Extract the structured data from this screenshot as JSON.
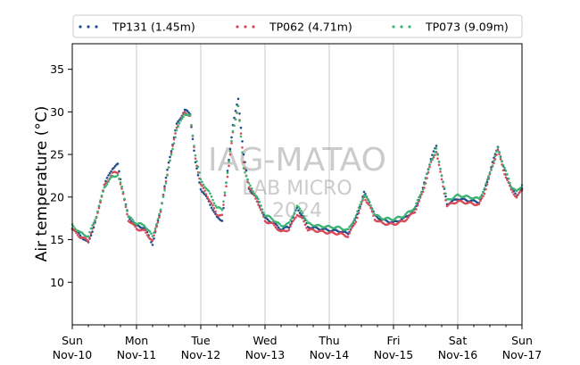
{
  "chart_data": {
    "type": "scatter",
    "title": "",
    "xlabel": "",
    "ylabel": "Air temperature (°C)",
    "ylim": [
      5,
      38
    ],
    "xlim": [
      "2024-11-10",
      "2024-11-17"
    ],
    "y_ticks": [
      10,
      15,
      20,
      25,
      30,
      35
    ],
    "x_ticks": [
      {
        "day": "Sun",
        "date": "Nov-10"
      },
      {
        "day": "Mon",
        "date": "Nov-11"
      },
      {
        "day": "Tue",
        "date": "Nov-12"
      },
      {
        "day": "Wed",
        "date": "Nov-13"
      },
      {
        "day": "Thu",
        "date": "Nov-14"
      },
      {
        "day": "Fri",
        "date": "Nov-15"
      },
      {
        "day": "Sat",
        "date": "Nov-16"
      },
      {
        "day": "Sun",
        "date": "Nov-17"
      }
    ],
    "grid": "vertical at each day",
    "legend_position": "top, above plot, 3 columns",
    "series": [
      {
        "name": "TP131 (1.45m)",
        "color": "#1f4e8c",
        "points": [
          [
            "2024-11-10 00:00",
            16.4
          ],
          [
            "2024-11-10 03:00",
            15.5
          ],
          [
            "2024-11-10 06:00",
            14.6
          ],
          [
            "2024-11-10 09:00",
            17.5
          ],
          [
            "2024-11-10 12:00",
            21.5
          ],
          [
            "2024-11-10 15:00",
            23.4
          ],
          [
            "2024-11-10 17:00",
            23.8
          ],
          [
            "2024-11-10 19:00",
            20.5
          ],
          [
            "2024-11-10 21:00",
            17.6
          ],
          [
            "2024-11-11 00:00",
            16.6
          ],
          [
            "2024-11-11 03:00",
            16.4
          ],
          [
            "2024-11-11 06:00",
            14.5
          ],
          [
            "2024-11-11 09:00",
            18.5
          ],
          [
            "2024-11-11 12:00",
            24.0
          ],
          [
            "2024-11-11 15:00",
            28.5
          ],
          [
            "2024-11-11 18:00",
            30.2
          ],
          [
            "2024-11-11 20:00",
            29.8
          ],
          [
            "2024-11-11 22:00",
            24.0
          ],
          [
            "2024-11-12 00:00",
            21.0
          ],
          [
            "2024-11-12 03:00",
            19.5
          ],
          [
            "2024-11-12 06:00",
            17.6
          ],
          [
            "2024-11-12 08:00",
            17.3
          ],
          [
            "2024-11-12 10:00",
            23.0
          ],
          [
            "2024-11-12 12:00",
            28.5
          ],
          [
            "2024-11-12 14:00",
            31.5
          ],
          [
            "2024-11-12 16:00",
            25.0
          ],
          [
            "2024-11-12 18:00",
            21.0
          ],
          [
            "2024-11-12 21:00",
            19.8
          ],
          [
            "2024-11-13 00:00",
            17.5
          ],
          [
            "2024-11-13 03:00",
            17.0
          ],
          [
            "2024-11-13 06:00",
            16.2
          ],
          [
            "2024-11-13 09:00",
            16.5
          ],
          [
            "2024-11-13 12:00",
            18.7
          ],
          [
            "2024-11-13 14:00",
            17.8
          ],
          [
            "2024-11-13 16:00",
            16.5
          ],
          [
            "2024-11-13 20:00",
            16.3
          ],
          [
            "2024-11-14 00:00",
            16.1
          ],
          [
            "2024-11-14 04:00",
            16.0
          ],
          [
            "2024-11-14 07:00",
            15.7
          ],
          [
            "2024-11-14 10:00",
            17.5
          ],
          [
            "2024-11-14 13:00",
            20.5
          ],
          [
            "2024-11-14 15:00",
            19.5
          ],
          [
            "2024-11-14 17:00",
            17.8
          ],
          [
            "2024-11-14 20:00",
            17.3
          ],
          [
            "2024-11-15 00:00",
            17.0
          ],
          [
            "2024-11-15 04:00",
            17.5
          ],
          [
            "2024-11-15 08:00",
            18.5
          ],
          [
            "2024-11-15 11:00",
            21.0
          ],
          [
            "2024-11-15 14:00",
            24.5
          ],
          [
            "2024-11-15 16:00",
            26.0
          ],
          [
            "2024-11-15 18:00",
            22.5
          ],
          [
            "2024-11-15 20:00",
            19.2
          ],
          [
            "2024-11-16 00:00",
            19.8
          ],
          [
            "2024-11-16 04:00",
            19.6
          ],
          [
            "2024-11-16 08:00",
            19.4
          ],
          [
            "2024-11-16 10:00",
            20.8
          ],
          [
            "2024-11-16 13:00",
            24.0
          ],
          [
            "2024-11-16 15:00",
            26.0
          ],
          [
            "2024-11-16 17:00",
            23.5
          ],
          [
            "2024-11-16 20:00",
            21.0
          ],
          [
            "2024-11-16 22:00",
            20.2
          ],
          [
            "2024-11-17 00:00",
            21.0
          ]
        ]
      },
      {
        "name": "TP062 (4.71m)",
        "color": "#d94a58",
        "points": [
          [
            "2024-11-10 00:00",
            16.2
          ],
          [
            "2024-11-10 03:00",
            15.3
          ],
          [
            "2024-11-10 06:00",
            14.9
          ],
          [
            "2024-11-10 09:00",
            17.6
          ],
          [
            "2024-11-10 12:00",
            21.3
          ],
          [
            "2024-11-10 15:00",
            22.8
          ],
          [
            "2024-11-10 17:00",
            22.9
          ],
          [
            "2024-11-10 19:00",
            20.3
          ],
          [
            "2024-11-10 21:00",
            17.3
          ],
          [
            "2024-11-11 00:00",
            16.3
          ],
          [
            "2024-11-11 03:00",
            16.0
          ],
          [
            "2024-11-11 06:00",
            14.8
          ],
          [
            "2024-11-11 09:00",
            18.3
          ],
          [
            "2024-11-11 12:00",
            23.6
          ],
          [
            "2024-11-11 15:00",
            28.2
          ],
          [
            "2024-11-11 18:00",
            29.9
          ],
          [
            "2024-11-11 20:00",
            29.6
          ],
          [
            "2024-11-11 22:00",
            24.5
          ],
          [
            "2024-11-12 00:00",
            21.5
          ],
          [
            "2024-11-12 03:00",
            19.8
          ],
          [
            "2024-11-12 06:00",
            18.0
          ],
          [
            "2024-11-12 08:00",
            17.8
          ],
          [
            "2024-11-12 10:00",
            22.5
          ],
          [
            "2024-11-12 12:00",
            27.5
          ],
          [
            "2024-11-12 14:00",
            30.8
          ],
          [
            "2024-11-12 16:00",
            24.0
          ],
          [
            "2024-11-12 18:00",
            21.2
          ],
          [
            "2024-11-12 21:00",
            19.6
          ],
          [
            "2024-11-13 00:00",
            17.2
          ],
          [
            "2024-11-13 03:00",
            16.8
          ],
          [
            "2024-11-13 06:00",
            15.9
          ],
          [
            "2024-11-13 09:00",
            16.2
          ],
          [
            "2024-11-13 12:00",
            18.0
          ],
          [
            "2024-11-13 14:00",
            17.4
          ],
          [
            "2024-11-13 16:00",
            16.2
          ],
          [
            "2024-11-13 20:00",
            16.0
          ],
          [
            "2024-11-14 00:00",
            15.8
          ],
          [
            "2024-11-14 04:00",
            15.7
          ],
          [
            "2024-11-14 07:00",
            15.4
          ],
          [
            "2024-11-14 10:00",
            17.2
          ],
          [
            "2024-11-14 13:00",
            20.0
          ],
          [
            "2024-11-14 15:00",
            19.0
          ],
          [
            "2024-11-14 17:00",
            17.4
          ],
          [
            "2024-11-14 20:00",
            16.9
          ],
          [
            "2024-11-15 00:00",
            16.8
          ],
          [
            "2024-11-15 04:00",
            17.2
          ],
          [
            "2024-11-15 08:00",
            18.3
          ],
          [
            "2024-11-15 11:00",
            20.6
          ],
          [
            "2024-11-15 14:00",
            24.0
          ],
          [
            "2024-11-15 16:00",
            25.4
          ],
          [
            "2024-11-15 18:00",
            22.0
          ],
          [
            "2024-11-15 20:00",
            19.0
          ],
          [
            "2024-11-16 00:00",
            19.5
          ],
          [
            "2024-11-16 04:00",
            19.3
          ],
          [
            "2024-11-16 08:00",
            19.1
          ],
          [
            "2024-11-16 10:00",
            20.5
          ],
          [
            "2024-11-16 13:00",
            23.6
          ],
          [
            "2024-11-16 15:00",
            25.5
          ],
          [
            "2024-11-16 17:00",
            23.2
          ],
          [
            "2024-11-16 20:00",
            20.8
          ],
          [
            "2024-11-16 22:00",
            20.0
          ],
          [
            "2024-11-17 00:00",
            20.8
          ]
        ]
      },
      {
        "name": "TP073 (9.09m)",
        "color": "#3cb371",
        "points": [
          [
            "2024-11-10 00:00",
            16.7
          ],
          [
            "2024-11-10 03:00",
            15.8
          ],
          [
            "2024-11-10 06:00",
            15.4
          ],
          [
            "2024-11-10 09:00",
            17.8
          ],
          [
            "2024-11-10 12:00",
            21.2
          ],
          [
            "2024-11-10 15:00",
            22.4
          ],
          [
            "2024-11-10 17:00",
            22.6
          ],
          [
            "2024-11-10 19:00",
            20.6
          ],
          [
            "2024-11-10 21:00",
            17.7
          ],
          [
            "2024-11-11 00:00",
            16.9
          ],
          [
            "2024-11-11 03:00",
            16.7
          ],
          [
            "2024-11-11 06:00",
            15.4
          ],
          [
            "2024-11-11 09:00",
            18.4
          ],
          [
            "2024-11-11 12:00",
            23.4
          ],
          [
            "2024-11-11 15:00",
            27.9
          ],
          [
            "2024-11-11 18:00",
            29.8
          ],
          [
            "2024-11-11 20:00",
            29.5
          ],
          [
            "2024-11-11 22:00",
            25.0
          ],
          [
            "2024-11-12 00:00",
            22.0
          ],
          [
            "2024-11-12 03:00",
            20.6
          ],
          [
            "2024-11-12 06:00",
            18.8
          ],
          [
            "2024-11-12 08:00",
            18.5
          ],
          [
            "2024-11-12 10:00",
            22.8
          ],
          [
            "2024-11-12 12:00",
            27.8
          ],
          [
            "2024-11-12 14:00",
            30.6
          ],
          [
            "2024-11-12 16:00",
            23.5
          ],
          [
            "2024-11-12 18:00",
            21.5
          ],
          [
            "2024-11-12 21:00",
            20.0
          ],
          [
            "2024-11-13 00:00",
            17.9
          ],
          [
            "2024-11-13 03:00",
            17.4
          ],
          [
            "2024-11-13 06:00",
            16.6
          ],
          [
            "2024-11-13 09:00",
            16.9
          ],
          [
            "2024-11-13 12:00",
            18.9
          ],
          [
            "2024-11-13 14:00",
            18.2
          ],
          [
            "2024-11-13 16:00",
            16.9
          ],
          [
            "2024-11-13 20:00",
            16.6
          ],
          [
            "2024-11-14 00:00",
            16.5
          ],
          [
            "2024-11-14 04:00",
            16.4
          ],
          [
            "2024-11-14 07:00",
            16.1
          ],
          [
            "2024-11-14 10:00",
            17.8
          ],
          [
            "2024-11-14 13:00",
            20.3
          ],
          [
            "2024-11-14 15:00",
            19.4
          ],
          [
            "2024-11-14 17:00",
            17.9
          ],
          [
            "2024-11-14 20:00",
            17.5
          ],
          [
            "2024-11-15 00:00",
            17.4
          ],
          [
            "2024-11-15 04:00",
            17.8
          ],
          [
            "2024-11-15 08:00",
            18.8
          ],
          [
            "2024-11-15 11:00",
            21.0
          ],
          [
            "2024-11-15 14:00",
            24.3
          ],
          [
            "2024-11-15 16:00",
            25.6
          ],
          [
            "2024-11-15 18:00",
            22.6
          ],
          [
            "2024-11-15 20:00",
            19.6
          ],
          [
            "2024-11-16 00:00",
            20.2
          ],
          [
            "2024-11-16 04:00",
            20.0
          ],
          [
            "2024-11-16 08:00",
            19.8
          ],
          [
            "2024-11-16 10:00",
            21.0
          ],
          [
            "2024-11-16 13:00",
            23.8
          ],
          [
            "2024-11-16 15:00",
            25.7
          ],
          [
            "2024-11-16 17:00",
            23.8
          ],
          [
            "2024-11-16 20:00",
            21.3
          ],
          [
            "2024-11-16 22:00",
            20.6
          ],
          [
            "2024-11-17 00:00",
            21.4
          ]
        ]
      }
    ]
  },
  "watermark": {
    "line1": "IAG-MATAO",
    "line2": "LAB MICRO",
    "line3": "2024",
    "color": "#8c8c8c"
  }
}
